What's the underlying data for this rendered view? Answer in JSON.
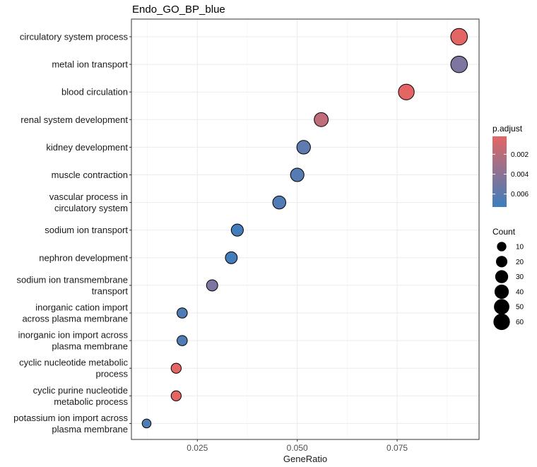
{
  "chart_data": {
    "type": "scatter",
    "title": "Endo_GO_BP_blue",
    "xlabel": "GeneRatio",
    "ylabel": "",
    "xlim": [
      0.0085,
      0.0955
    ],
    "xticks": [
      "0.025",
      "0.050",
      "0.075"
    ],
    "xtick_values": [
      0.025,
      0.05,
      0.075
    ],
    "grid": true,
    "legend_position": "right",
    "categories": [
      "circulatory system process",
      "metal ion transport",
      "blood circulation",
      "renal system development",
      "kidney development",
      "muscle contraction",
      "vascular process in\ncirculatory system",
      "sodium ion transport",
      "nephron development",
      "sodium ion transmembrane\ntransport",
      "inorganic cation import\nacross plasma membrane",
      "inorganic ion import across\nplasma membrane",
      "cyclic nucleotide metabolic\nprocess",
      "cyclic purine nucleotide\nmetabolic process",
      "potassium ion import across\nplasma membrane"
    ],
    "points": [
      {
        "term": "circulatory system process",
        "gene_ratio": 0.0905,
        "count": 62,
        "p_adjust": 0.0002
      },
      {
        "term": "metal ion transport",
        "gene_ratio": 0.0905,
        "count": 62,
        "p_adjust": 0.0038
      },
      {
        "term": "blood circulation",
        "gene_ratio": 0.0773,
        "count": 53,
        "p_adjust": 0.0002
      },
      {
        "term": "renal system development",
        "gene_ratio": 0.056,
        "count": 38,
        "p_adjust": 0.0015
      },
      {
        "term": "kidney development",
        "gene_ratio": 0.0516,
        "count": 35,
        "p_adjust": 0.0055
      },
      {
        "term": "muscle contraction",
        "gene_ratio": 0.05,
        "count": 34,
        "p_adjust": 0.006
      },
      {
        "term": "vascular process in\ncirculatory system",
        "gene_ratio": 0.0455,
        "count": 31,
        "p_adjust": 0.0063
      },
      {
        "term": "sodium ion transport",
        "gene_ratio": 0.035,
        "count": 24,
        "p_adjust": 0.007
      },
      {
        "term": "nephron development",
        "gene_ratio": 0.0335,
        "count": 23,
        "p_adjust": 0.007
      },
      {
        "term": "sodium ion transmembrane\ntransport",
        "gene_ratio": 0.0287,
        "count": 19,
        "p_adjust": 0.004
      },
      {
        "term": "inorganic cation import\nacross plasma membrane",
        "gene_ratio": 0.0212,
        "count": 14,
        "p_adjust": 0.0063
      },
      {
        "term": "inorganic ion import across\nplasma membrane",
        "gene_ratio": 0.0212,
        "count": 14,
        "p_adjust": 0.0063
      },
      {
        "term": "cyclic nucleotide metabolic\nprocess",
        "gene_ratio": 0.0197,
        "count": 13,
        "p_adjust": 0.0002
      },
      {
        "term": "cyclic purine nucleotide\nmetabolic process",
        "gene_ratio": 0.0197,
        "count": 13,
        "p_adjust": 0.0002
      },
      {
        "term": "potassium ion import across\nplasma membrane",
        "gene_ratio": 0.0123,
        "count": 8,
        "p_adjust": 0.0063
      }
    ],
    "color_legend": {
      "title": "p.adjust",
      "ticks": [
        "0.002",
        "0.004",
        "0.006"
      ],
      "tick_values": [
        0.002,
        0.004,
        0.006
      ],
      "range": [
        0.0002,
        0.0073
      ],
      "low_color": "#e36665",
      "high_color": "#3d7ebd"
    },
    "size_legend": {
      "title": "Count",
      "ticks": [
        "10",
        "20",
        "30",
        "40",
        "50",
        "60"
      ],
      "tick_values": [
        10,
        20,
        30,
        40,
        50,
        60
      ]
    }
  }
}
